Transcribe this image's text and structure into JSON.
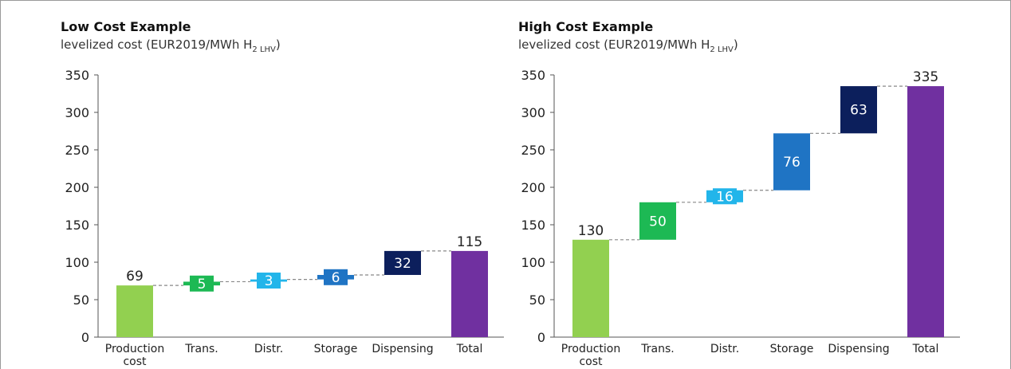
{
  "chart_data": [
    {
      "type": "waterfall",
      "title": "Low Cost Example",
      "subtitle_main": "levelized cost (EUR2019/MWh H",
      "subtitle_sub2": "2",
      "subtitle_lhv": "LHV",
      "subtitle_end": ")",
      "categories": [
        [
          "Production",
          "cost"
        ],
        [
          "Trans."
        ],
        [
          "Distr."
        ],
        [
          "Storage"
        ],
        [
          "Dispensing"
        ],
        [
          "Total"
        ]
      ],
      "values": [
        69,
        5,
        3,
        6,
        32,
        115
      ],
      "value_labels": [
        "69",
        "5",
        "3",
        "6",
        "32",
        "115"
      ],
      "yticks": [
        "0",
        "50",
        "100",
        "150",
        "200",
        "250",
        "300",
        "350"
      ],
      "ylim": [
        0,
        350
      ],
      "colors": [
        "#92d050",
        "#1db954",
        "#22b5ea",
        "#1f74c4",
        "#0c1f5c",
        "#7030a0"
      ]
    },
    {
      "type": "waterfall",
      "title": "High Cost Example",
      "subtitle_main": "levelized cost (EUR2019/MWh H",
      "subtitle_sub2": "2",
      "subtitle_lhv": "LHV",
      "subtitle_end": ")",
      "categories": [
        [
          "Production",
          "cost"
        ],
        [
          "Trans."
        ],
        [
          "Distr."
        ],
        [
          "Storage"
        ],
        [
          "Dispensing"
        ],
        [
          "Total"
        ]
      ],
      "values": [
        130,
        50,
        16,
        76,
        63,
        335
      ],
      "value_labels": [
        "130",
        "50",
        "16",
        "76",
        "63",
        "335"
      ],
      "yticks": [
        "0",
        "50",
        "100",
        "150",
        "200",
        "250",
        "300",
        "350"
      ],
      "ylim": [
        0,
        350
      ],
      "colors": [
        "#92d050",
        "#1db954",
        "#22b5ea",
        "#1f74c4",
        "#0c1f5c",
        "#7030a0"
      ]
    }
  ]
}
